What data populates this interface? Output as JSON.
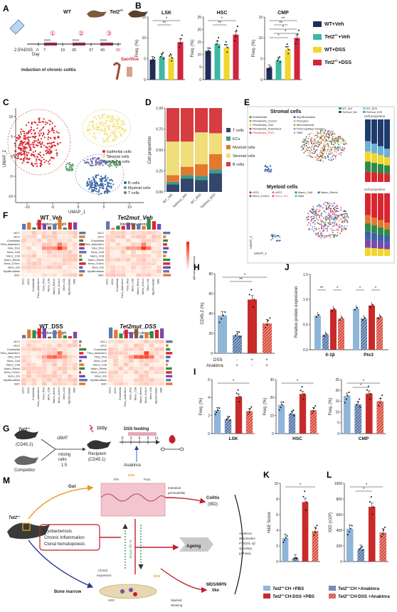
{
  "panels": {
    "A": "A",
    "B": "B",
    "C": "C",
    "D": "D",
    "E": "E",
    "F": "F",
    "G": "G",
    "H": "H",
    "I": "I",
    "J": "J",
    "K": "K",
    "L": "L",
    "M": "M"
  },
  "panel_a": {
    "reagent": "2.5%DSS",
    "day_label": "Day",
    "days": [
      "0",
      "7",
      "19",
      "26",
      "37",
      "43",
      "50"
    ],
    "cycles": [
      "①",
      "②",
      "③"
    ],
    "dss": "DSS",
    "wt": "WT",
    "tet2": "Tet2",
    "tet2_sup": "+/-",
    "sacrifice": "Sacrifice",
    "caption": "Induction of chronic colitis"
  },
  "legend_b": {
    "items": [
      {
        "base": "WT+Veh",
        "sup": "",
        "rest": "",
        "color": "#1f2d5a"
      },
      {
        "base": "Tet2",
        "sup": "+/-",
        "rest": "+Veh",
        "color": "#3cb8a3"
      },
      {
        "base": "WT+DSS",
        "sup": "",
        "rest": "",
        "color": "#f2d62b"
      },
      {
        "base": "Tet2",
        "sup": "+/-",
        "rest": "+DSS",
        "color": "#d1243e"
      }
    ]
  },
  "chart_data": [
    {
      "type": "bar",
      "title": "LSK",
      "ylabel": "Freq. (%)",
      "ylim": [
        0,
        15
      ],
      "yticks": [
        "0",
        "5",
        "10",
        "15"
      ],
      "categories": [
        "WT+Veh",
        "Tet2+/-+Veh",
        "WT+DSS",
        "Tet2+/-+DSS"
      ],
      "values": [
        4.8,
        5.5,
        5.2,
        9.0
      ],
      "sig": [
        "*",
        "**"
      ]
    },
    {
      "type": "bar",
      "title": "HSC",
      "ylabel": "Freq. (%)",
      "ylim": [
        0,
        25
      ],
      "yticks": [
        "0",
        "5",
        "10",
        "15",
        "20",
        "25"
      ],
      "categories": [
        "WT+Veh",
        "Tet2+/-+Veh",
        "WT+DSS",
        "Tet2+/-+DSS"
      ],
      "values": [
        11.5,
        14.2,
        12.8,
        18.0
      ],
      "sig": [
        "*",
        "**"
      ]
    },
    {
      "type": "bar",
      "title": "CMP",
      "ylabel": "Freq. (%)",
      "ylim": [
        0,
        15
      ],
      "yticks": [
        "0",
        "5",
        "10",
        "15"
      ],
      "categories": [
        "WT+Veh",
        "Tet2+/-+Veh",
        "WT+DSS",
        "Tet2+/-+DSS"
      ],
      "values": [
        2.8,
        4.6,
        7.2,
        10.0
      ],
      "sig": [
        "**",
        "**",
        "*",
        "*",
        "*"
      ]
    },
    {
      "type": "bar",
      "ylabel": "Cell proportion",
      "ylim": [
        0,
        1.0
      ],
      "yticks": [
        "0.00",
        "0.25",
        "0.50",
        "0.75",
        "1.00"
      ],
      "categories": [
        "WT_Veh",
        "Tet2mut_Veh",
        "WT_DSS",
        "Tet2mut_DSS"
      ],
      "series": [
        {
          "name": "T cells",
          "values": [
            0.09,
            0.16,
            0.14,
            0.22
          ]
        },
        {
          "name": "ECs",
          "values": [
            0.03,
            0.04,
            0.05,
            0.05
          ]
        },
        {
          "name": "Myeloid cells",
          "values": [
            0.08,
            0.1,
            0.14,
            0.18
          ]
        },
        {
          "name": "Stromal cells",
          "values": [
            0.4,
            0.3,
            0.38,
            0.25
          ]
        },
        {
          "name": "B cells",
          "values": [
            0.4,
            0.4,
            0.29,
            0.3
          ]
        }
      ]
    },
    {
      "type": "bar",
      "ylabel": "CD45.2 (%)",
      "ylim": [
        0,
        80
      ],
      "yticks": [
        "0",
        "20",
        "40",
        "60",
        "80"
      ],
      "categories": [
        "PBS",
        "Anakinra",
        "DSS+PBS",
        "DSS+Anakinra"
      ],
      "values": [
        38,
        18,
        54,
        30
      ],
      "sig": [
        "*",
        "**"
      ]
    },
    {
      "type": "bar",
      "ylabel": "Relative protein expression",
      "ylim": [
        0,
        1.5
      ],
      "yticks": [
        "0.0",
        "0.5",
        "1.0",
        "1.5"
      ],
      "categories": [
        "Il-1β",
        "Ptx3"
      ],
      "groups": [
        "Il-1β",
        "Ptx3"
      ],
      "series": [
        {
          "values": [
            0.68,
            0.82
          ]
        },
        {
          "values": [
            0.3,
            0.62
          ]
        },
        {
          "values": [
            0.8,
            0.88
          ]
        },
        {
          "values": [
            0.62,
            0.65
          ]
        }
      ],
      "sig": [
        "**",
        "*",
        "*",
        "*"
      ]
    },
    {
      "type": "bar",
      "ylabel": "Freq. (%)",
      "xlabel": "LSK",
      "ylim": [
        0,
        6
      ],
      "yticks": [
        "0",
        "2",
        "4",
        "6"
      ],
      "values": [
        2.6,
        1.6,
        4.1,
        2.5
      ],
      "sig": [
        "*"
      ]
    },
    {
      "type": "bar",
      "ylabel": "Freq. (%)",
      "xlabel": "HSC",
      "ylim": [
        0,
        30
      ],
      "yticks": [
        "0",
        "10",
        "20",
        "30"
      ],
      "values": [
        16,
        11,
        22,
        13
      ],
      "sig": [
        "*"
      ]
    },
    {
      "type": "bar",
      "ylabel": "Freq. (%)",
      "xlabel": "CMP",
      "ylim": [
        0,
        25
      ],
      "yticks": [
        "0",
        "5",
        "10",
        "15",
        "20",
        "25"
      ],
      "values": [
        17.5,
        13.5,
        18.5,
        15
      ],
      "sig": [
        "*",
        "*"
      ]
    },
    {
      "type": "bar",
      "ylabel": "H&E Score",
      "ylim": [
        0,
        10
      ],
      "yticks": [
        "0",
        "2",
        "4",
        "6",
        "8",
        "10"
      ],
      "values": [
        3.0,
        0.4,
        7.6,
        3.9
      ],
      "sig": [
        "*"
      ]
    },
    {
      "type": "bar",
      "ylabel": "IOD (x10³)",
      "ylim": [
        0,
        1000
      ],
      "yticks": [
        "0",
        "200",
        "400",
        "600",
        "800",
        "1000"
      ],
      "values": [
        420,
        160,
        700,
        370
      ],
      "sig": [
        "*",
        "*"
      ]
    }
  ],
  "panel_c": {
    "xlabel": "UMAP_1",
    "ylabel": "UMAP_2",
    "xticks": [
      "-10",
      "-5",
      "0",
      "5",
      "10"
    ],
    "yticks": [
      "-10",
      "-5",
      "0",
      "5",
      "10"
    ],
    "legend1": [
      {
        "name": "Epithelial cells",
        "color": "#d8262f"
      },
      {
        "name": "Stromal cells",
        "color": "#f2e37a"
      },
      {
        "name": "Immune cells",
        "color": "#4a6fa5"
      }
    ],
    "legend2": [
      {
        "name": "B cells",
        "color": "#3a64a8"
      },
      {
        "name": "Myeloid cells",
        "color": "#5aa06a"
      },
      {
        "name": "T cells",
        "color": "#6b6fa8"
      }
    ]
  },
  "panel_d": {
    "legend": [
      {
        "name": "T cells",
        "color": "#33476d"
      },
      {
        "name": "ECs",
        "color": "#3f9a8c"
      },
      {
        "name": "Myeloid cells",
        "color": "#e3792c"
      },
      {
        "name": "Stromal cells",
        "color": "#f0de7a"
      },
      {
        "name": "B cells",
        "color": "#d63c40"
      }
    ]
  },
  "panel_e": {
    "stromal_title": "Stromal cells",
    "stromal_legend": [
      "Endothelial",
      "Fibroblasts_Cxcl12",
      "Fibroblasts_Gsn",
      "Fibroblasts_Adamdec1",
      "Fibroblasts_Ptx3",
      "Myofibroblasts",
      "Pericytes",
      "Microvascular",
      "Post-capillary Venules",
      "SMC"
    ],
    "top_legend": [
      "WT_Veh",
      "WT_DSS",
      "Tet2mut_Veh",
      "Tet2mut_DSS"
    ],
    "myeloid_title": "Myeloid cells",
    "myeloid_legend": [
      "cDC1",
      "cDC2",
      "Macro_Ccl8",
      "Macro_Relmb",
      "Mono_Cx3cr1",
      "Mono_Il1b",
      "Mast"
    ],
    "cell_prop": "Cell proportion",
    "xlabel": "UMAP_1",
    "ylabel": "UMAP_2"
  },
  "panel_f": {
    "titles": [
      "WT_Veh",
      "Tet2mut_Veh",
      "WT_DSS",
      "Tet2mut_DSS"
    ],
    "subtitle": "Interaction strength",
    "rows": [
      "cDC1",
      "cDC2",
      "Endothelial",
      "Fibro_Adamdec1",
      "Fibro_Ptx3",
      "Mono_Ccl8",
      "Macro_Ccl8",
      "Macro_Relmb",
      "Mono_Cx3cr1",
      "Mono_Il1b",
      "Myofibroblasts",
      "SMC"
    ],
    "cols": [
      "cDC1",
      "cDC2",
      "Endothelial",
      "Fibro_Adamdec1",
      "Fibro_Ptx3",
      "Mono_Ccl8",
      "Macro_Relmb",
      "Mono_Cx3cr1",
      "Mono_Il1b",
      "Myofibroblasts",
      "SMC"
    ],
    "scale_label": "Interaction strength"
  },
  "panel_g": {
    "donor": "Tet2",
    "donor_sup": "+/-",
    "donor_id": "(CD45.2)",
    "competitor": "Competitor",
    "cbmt": "cBMT",
    "mixing": "mixing",
    "ratio": "ratio",
    "ratio_val": "1:5",
    "irr": "11Gy",
    "recipient": "Recipient",
    "recipient_id": "(CD45.1)",
    "dss_feeding": "DSS feeding",
    "anakinra": "Anakinra",
    "days": [
      "0",
      "3",
      "6",
      "9",
      "11"
    ]
  },
  "panel_h": {
    "row_dss": "DSS",
    "row_anakinra": "Anakinra",
    "dss_marks": [
      "-",
      "-",
      "+",
      "+"
    ],
    "anakinra_marks": [
      "-",
      "+",
      "-",
      "+"
    ]
  },
  "legend_bottom": {
    "items": [
      {
        "base": "Tet2",
        "sup": "+/-",
        "rest": "CH +PBS",
        "color": "#8fb5d9",
        "hatch": false
      },
      {
        "base": "Tet2",
        "sup": "+/-",
        "rest": "CH +Anakinra",
        "color": "#5576a8",
        "hatch": true
      },
      {
        "base": "Tet2",
        "sup": "+/-",
        "rest": "CH-DSS +PBS",
        "color": "#c82a2a",
        "hatch": false
      },
      {
        "base": "Tet2",
        "sup": "+/-",
        "rest": "CH-DSS +Anakinra",
        "color": "#d84a3a",
        "hatch": true
      }
    ]
  },
  "panel_m": {
    "gut": "Gut",
    "bone_marrow": "Bone marrow",
    "pre": "Pre",
    "post": "Post",
    "dss": "DSS",
    "factors": [
      "Dysbacteriosis",
      "Chronic Inflammation",
      "Clonal hematopoiesis"
    ],
    "intestinal": "Intestinal",
    "permeability": "permeability",
    "colitis": "Colitis",
    "ibd": "(IBD)",
    "ageing": "Ageing",
    "anakinra1": "Anakinra",
    "anakinra2": "deactivates",
    "anakinra3": "PTX3/IL-1β",
    "anakinra4": "signaling",
    "anakinra5": "pathway",
    "clonal": "Clonal",
    "expansion": "expansion",
    "hsc": "HSC",
    "myeloid": "Myeloid",
    "skewing": "skewing",
    "mds1": "MDS/MPN",
    "mds2": "like",
    "il1b": "IL-1β / PTX3",
    "tet2": "Tet2",
    "tet2_sup": "+/-"
  }
}
